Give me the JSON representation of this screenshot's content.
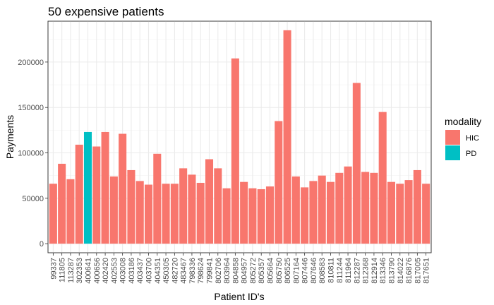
{
  "chart_data": {
    "type": "bar",
    "title": "50 expensive patients",
    "xlabel": "Patient ID's",
    "ylabel": "Payments",
    "ylim": [
      -10000,
      245000
    ],
    "yticks": [
      0,
      50000,
      100000,
      150000,
      200000
    ],
    "grid": true,
    "legend": {
      "title": "modality",
      "position": "right",
      "entries": [
        {
          "name": "HIC",
          "color": "#F8766D"
        },
        {
          "name": "PD",
          "color": "#00BFC4"
        }
      ]
    },
    "categories": [
      "99337",
      "111805",
      "113287",
      "302353",
      "400641",
      "400656",
      "402420",
      "402553",
      "403008",
      "403186",
      "403437",
      "403700",
      "404351",
      "450305",
      "482720",
      "483467",
      "798336",
      "798624",
      "799841",
      "802706",
      "803964",
      "804858",
      "804957",
      "805272",
      "805357",
      "805664",
      "805750",
      "806525",
      "807164",
      "807446",
      "807646",
      "808583",
      "810811",
      "811244",
      "811964",
      "812287",
      "812368",
      "812914",
      "813346",
      "813790",
      "814022",
      "816876",
      "817005",
      "817651"
    ],
    "values": [
      66000,
      88000,
      71000,
      109000,
      123000,
      107000,
      123000,
      74000,
      121000,
      81000,
      69000,
      65000,
      99000,
      66000,
      66000,
      83000,
      76000,
      67000,
      93000,
      83000,
      61000,
      204000,
      68000,
      61000,
      60000,
      63000,
      135000,
      235000,
      74000,
      62000,
      69000,
      75000,
      68000,
      78000,
      85000,
      177000,
      79000,
      78000,
      145000,
      68000,
      66000,
      70000,
      81000,
      66000
    ],
    "modality": [
      "HIC",
      "HIC",
      "HIC",
      "HIC",
      "PD",
      "HIC",
      "HIC",
      "HIC",
      "HIC",
      "HIC",
      "HIC",
      "HIC",
      "HIC",
      "HIC",
      "HIC",
      "HIC",
      "HIC",
      "HIC",
      "HIC",
      "HIC",
      "HIC",
      "HIC",
      "HIC",
      "HIC",
      "HIC",
      "HIC",
      "HIC",
      "HIC",
      "HIC",
      "HIC",
      "HIC",
      "HIC",
      "HIC",
      "HIC",
      "HIC",
      "HIC",
      "HIC",
      "HIC",
      "HIC",
      "HIC",
      "HIC",
      "HIC",
      "HIC",
      "HIC"
    ]
  }
}
